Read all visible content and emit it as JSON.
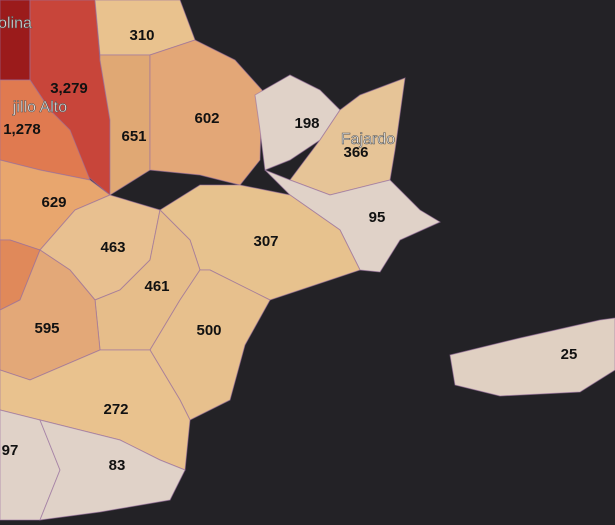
{
  "places": [
    "olina",
    "jillo Alto",
    "Fajardo"
  ],
  "regions": [
    "310",
    "3,279",
    "1,278",
    "651",
    "602",
    "198",
    "366",
    "629",
    "95",
    "463",
    "307",
    "461",
    "595",
    "500",
    "272",
    "97",
    "83",
    "25"
  ]
}
